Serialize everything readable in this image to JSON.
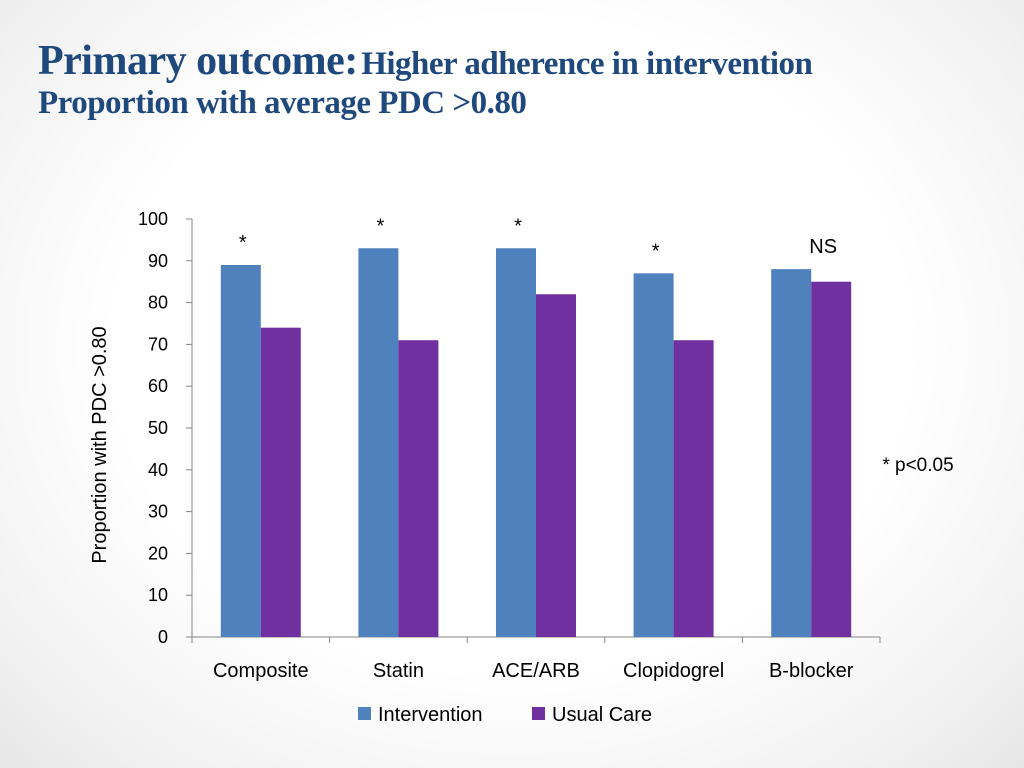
{
  "title": {
    "main": "Primary outcome:",
    "subtitle": "Higher adherence in intervention",
    "line2": "Proportion with average PDC >0.80"
  },
  "chart_data": {
    "type": "bar",
    "categories": [
      "Composite",
      "Statin",
      "ACE/ARB",
      "Clopidogrel",
      "B-blocker"
    ],
    "series": [
      {
        "name": "Intervention",
        "values": [
          89,
          93,
          93,
          87,
          88
        ],
        "color": "#4f81bd"
      },
      {
        "name": "Usual Care",
        "values": [
          74,
          71,
          82,
          71,
          85
        ],
        "color": "#7030a0"
      }
    ],
    "significance": [
      "*",
      "*",
      "*",
      "*",
      "NS"
    ],
    "ylabel": "Proportion with PDC >0.80",
    "xlabel": "",
    "ylim": [
      0,
      100
    ],
    "yticks": [
      0,
      10,
      20,
      30,
      40,
      50,
      60,
      70,
      80,
      90,
      100
    ],
    "annotation": "* p<0.05",
    "legend_position": "bottom",
    "grid": false
  }
}
